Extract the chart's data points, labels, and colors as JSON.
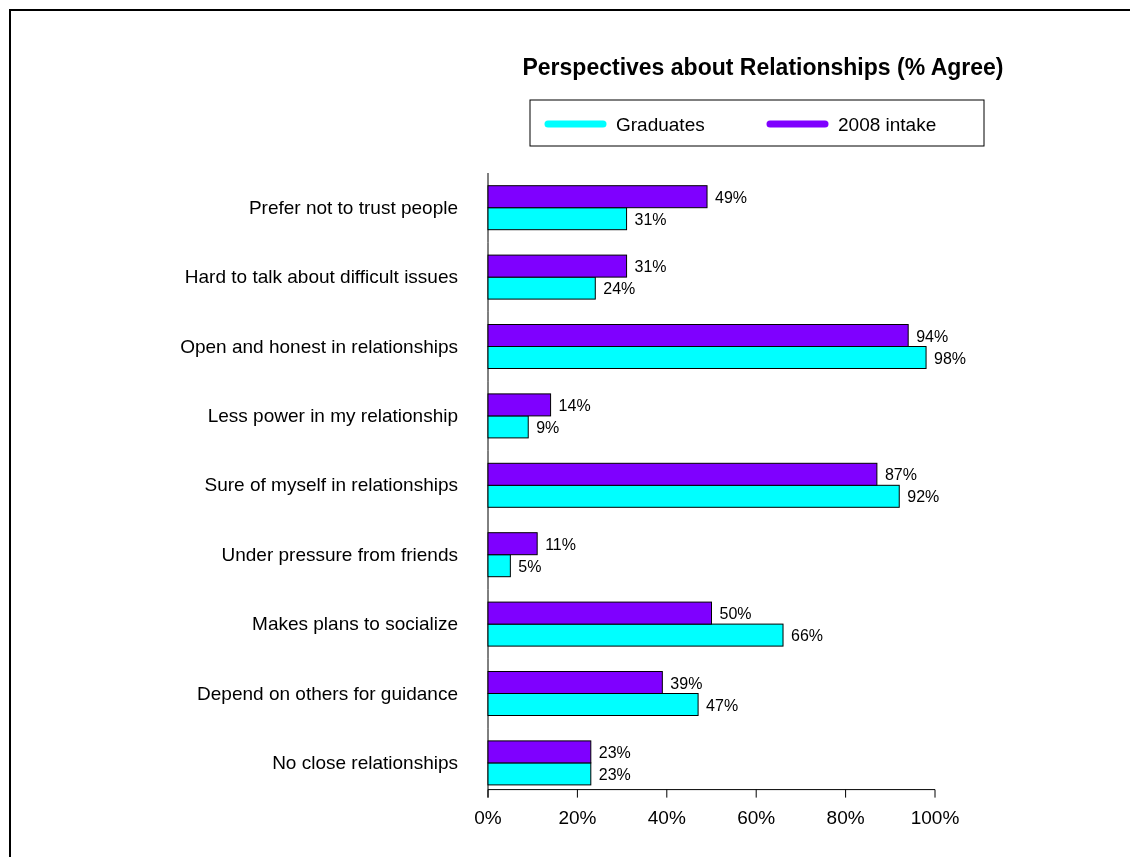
{
  "chart_data": {
    "type": "bar",
    "orientation": "horizontal",
    "title": "Perspectives about Relationships (% Agree)",
    "categories": [
      "Prefer not to trust people",
      "Hard to talk about difficult issues",
      "Open and honest in relationships",
      "Less power in my relationship",
      "Sure of myself in relationships",
      "Under pressure from friends",
      "Makes plans to socialize",
      "Depend on others for guidance",
      "No close relationships"
    ],
    "series": [
      {
        "name": "Graduates",
        "color": "#00ffff",
        "values": [
          31,
          24,
          98,
          9,
          92,
          5,
          66,
          47,
          23
        ],
        "value_labels": [
          "31%",
          "24%",
          "98%",
          "9%",
          "92%",
          "5%",
          "66%",
          "47%",
          "23%"
        ]
      },
      {
        "name": "2008 intake",
        "color": "#7f00ff",
        "values": [
          49,
          31,
          94,
          14,
          87,
          11,
          50,
          39,
          23
        ],
        "value_labels": [
          "49%",
          "31%",
          "94%",
          "14%",
          "87%",
          "11%",
          "50%",
          "39%",
          "23%"
        ]
      }
    ],
    "xlim": [
      0,
      100
    ],
    "xticks": [
      {
        "value": 0,
        "label": "0%"
      },
      {
        "value": 20,
        "label": "20%"
      },
      {
        "value": 40,
        "label": "40%"
      },
      {
        "value": 60,
        "label": "60%"
      },
      {
        "value": 80,
        "label": "80%"
      },
      {
        "value": 100,
        "label": "100%"
      }
    ],
    "legend": "top",
    "grid": false
  }
}
